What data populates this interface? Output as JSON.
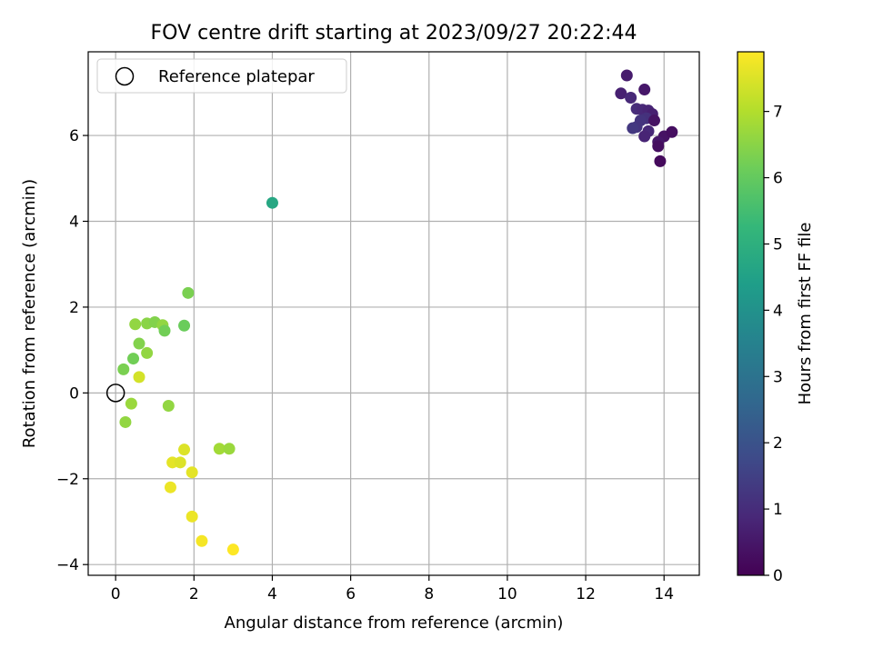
{
  "chart_data": {
    "type": "scatter",
    "title": "FOV centre drift starting at 2023/09/27 20:22:44",
    "xlabel": "Angular distance from reference (arcmin)",
    "ylabel": "Rotation from reference (arcmin)",
    "xlim": [
      -0.7,
      14.9
    ],
    "ylim": [
      -4.25,
      7.95
    ],
    "xticks": [
      0,
      2,
      4,
      6,
      8,
      10,
      12,
      14
    ],
    "yticks": [
      -4,
      -2,
      0,
      2,
      4,
      6
    ],
    "grid": true,
    "legend": {
      "placement": "top-left",
      "entries": [
        {
          "label": "Reference platepar",
          "marker": "hollow-circle"
        }
      ]
    },
    "reference_point": {
      "x": 0,
      "y": 0
    },
    "colorbar": {
      "label": "Hours from first FF file",
      "colormap": "viridis",
      "range": [
        0,
        7.9
      ],
      "ticks": [
        0,
        1,
        2,
        3,
        4,
        5,
        6,
        7
      ]
    },
    "points": [
      {
        "x": 13.05,
        "y": 7.4,
        "t": 0.6
      },
      {
        "x": 12.9,
        "y": 6.98,
        "t": 0.7
      },
      {
        "x": 13.15,
        "y": 6.88,
        "t": 0.9
      },
      {
        "x": 13.5,
        "y": 7.07,
        "t": 0.5
      },
      {
        "x": 13.3,
        "y": 6.62,
        "t": 1.0
      },
      {
        "x": 13.45,
        "y": 6.6,
        "t": 0.9
      },
      {
        "x": 13.6,
        "y": 6.58,
        "t": 0.8
      },
      {
        "x": 13.7,
        "y": 6.5,
        "t": 0.7
      },
      {
        "x": 13.55,
        "y": 6.4,
        "t": 1.1
      },
      {
        "x": 13.4,
        "y": 6.35,
        "t": 1.2
      },
      {
        "x": 13.75,
        "y": 6.35,
        "t": 0.4
      },
      {
        "x": 13.3,
        "y": 6.2,
        "t": 1.2
      },
      {
        "x": 13.2,
        "y": 6.17,
        "t": 1.3
      },
      {
        "x": 13.6,
        "y": 6.1,
        "t": 0.9
      },
      {
        "x": 13.5,
        "y": 5.98,
        "t": 0.8
      },
      {
        "x": 14.0,
        "y": 5.98,
        "t": 0.4
      },
      {
        "x": 14.2,
        "y": 6.08,
        "t": 0.3
      },
      {
        "x": 13.85,
        "y": 5.85,
        "t": 0.5
      },
      {
        "x": 13.85,
        "y": 5.75,
        "t": 0.3
      },
      {
        "x": 13.9,
        "y": 5.4,
        "t": 0.2
      },
      {
        "x": 4.0,
        "y": 4.43,
        "t": 4.7
      },
      {
        "x": 1.85,
        "y": 2.33,
        "t": 6.3
      },
      {
        "x": 0.5,
        "y": 1.6,
        "t": 6.6
      },
      {
        "x": 0.8,
        "y": 1.62,
        "t": 6.5
      },
      {
        "x": 1.0,
        "y": 1.65,
        "t": 6.4
      },
      {
        "x": 1.2,
        "y": 1.58,
        "t": 6.6
      },
      {
        "x": 1.75,
        "y": 1.57,
        "t": 6.1
      },
      {
        "x": 1.25,
        "y": 1.45,
        "t": 6.2
      },
      {
        "x": 0.6,
        "y": 1.15,
        "t": 6.4
      },
      {
        "x": 0.8,
        "y": 0.93,
        "t": 6.6
      },
      {
        "x": 0.45,
        "y": 0.8,
        "t": 6.2
      },
      {
        "x": 0.2,
        "y": 0.55,
        "t": 6.3
      },
      {
        "x": 0.6,
        "y": 0.37,
        "t": 7.4
      },
      {
        "x": 0.4,
        "y": -0.25,
        "t": 6.7
      },
      {
        "x": 1.35,
        "y": -0.3,
        "t": 6.6
      },
      {
        "x": 0.25,
        "y": -0.68,
        "t": 6.6
      },
      {
        "x": 2.65,
        "y": -1.3,
        "t": 6.8
      },
      {
        "x": 2.9,
        "y": -1.3,
        "t": 6.7
      },
      {
        "x": 1.75,
        "y": -1.32,
        "t": 7.5
      },
      {
        "x": 1.45,
        "y": -1.62,
        "t": 7.6
      },
      {
        "x": 1.65,
        "y": -1.62,
        "t": 7.5
      },
      {
        "x": 1.95,
        "y": -1.85,
        "t": 7.6
      },
      {
        "x": 1.4,
        "y": -2.2,
        "t": 7.7
      },
      {
        "x": 1.95,
        "y": -2.88,
        "t": 7.7
      },
      {
        "x": 2.2,
        "y": -3.45,
        "t": 7.8
      },
      {
        "x": 3.0,
        "y": -3.65,
        "t": 7.9
      }
    ]
  }
}
